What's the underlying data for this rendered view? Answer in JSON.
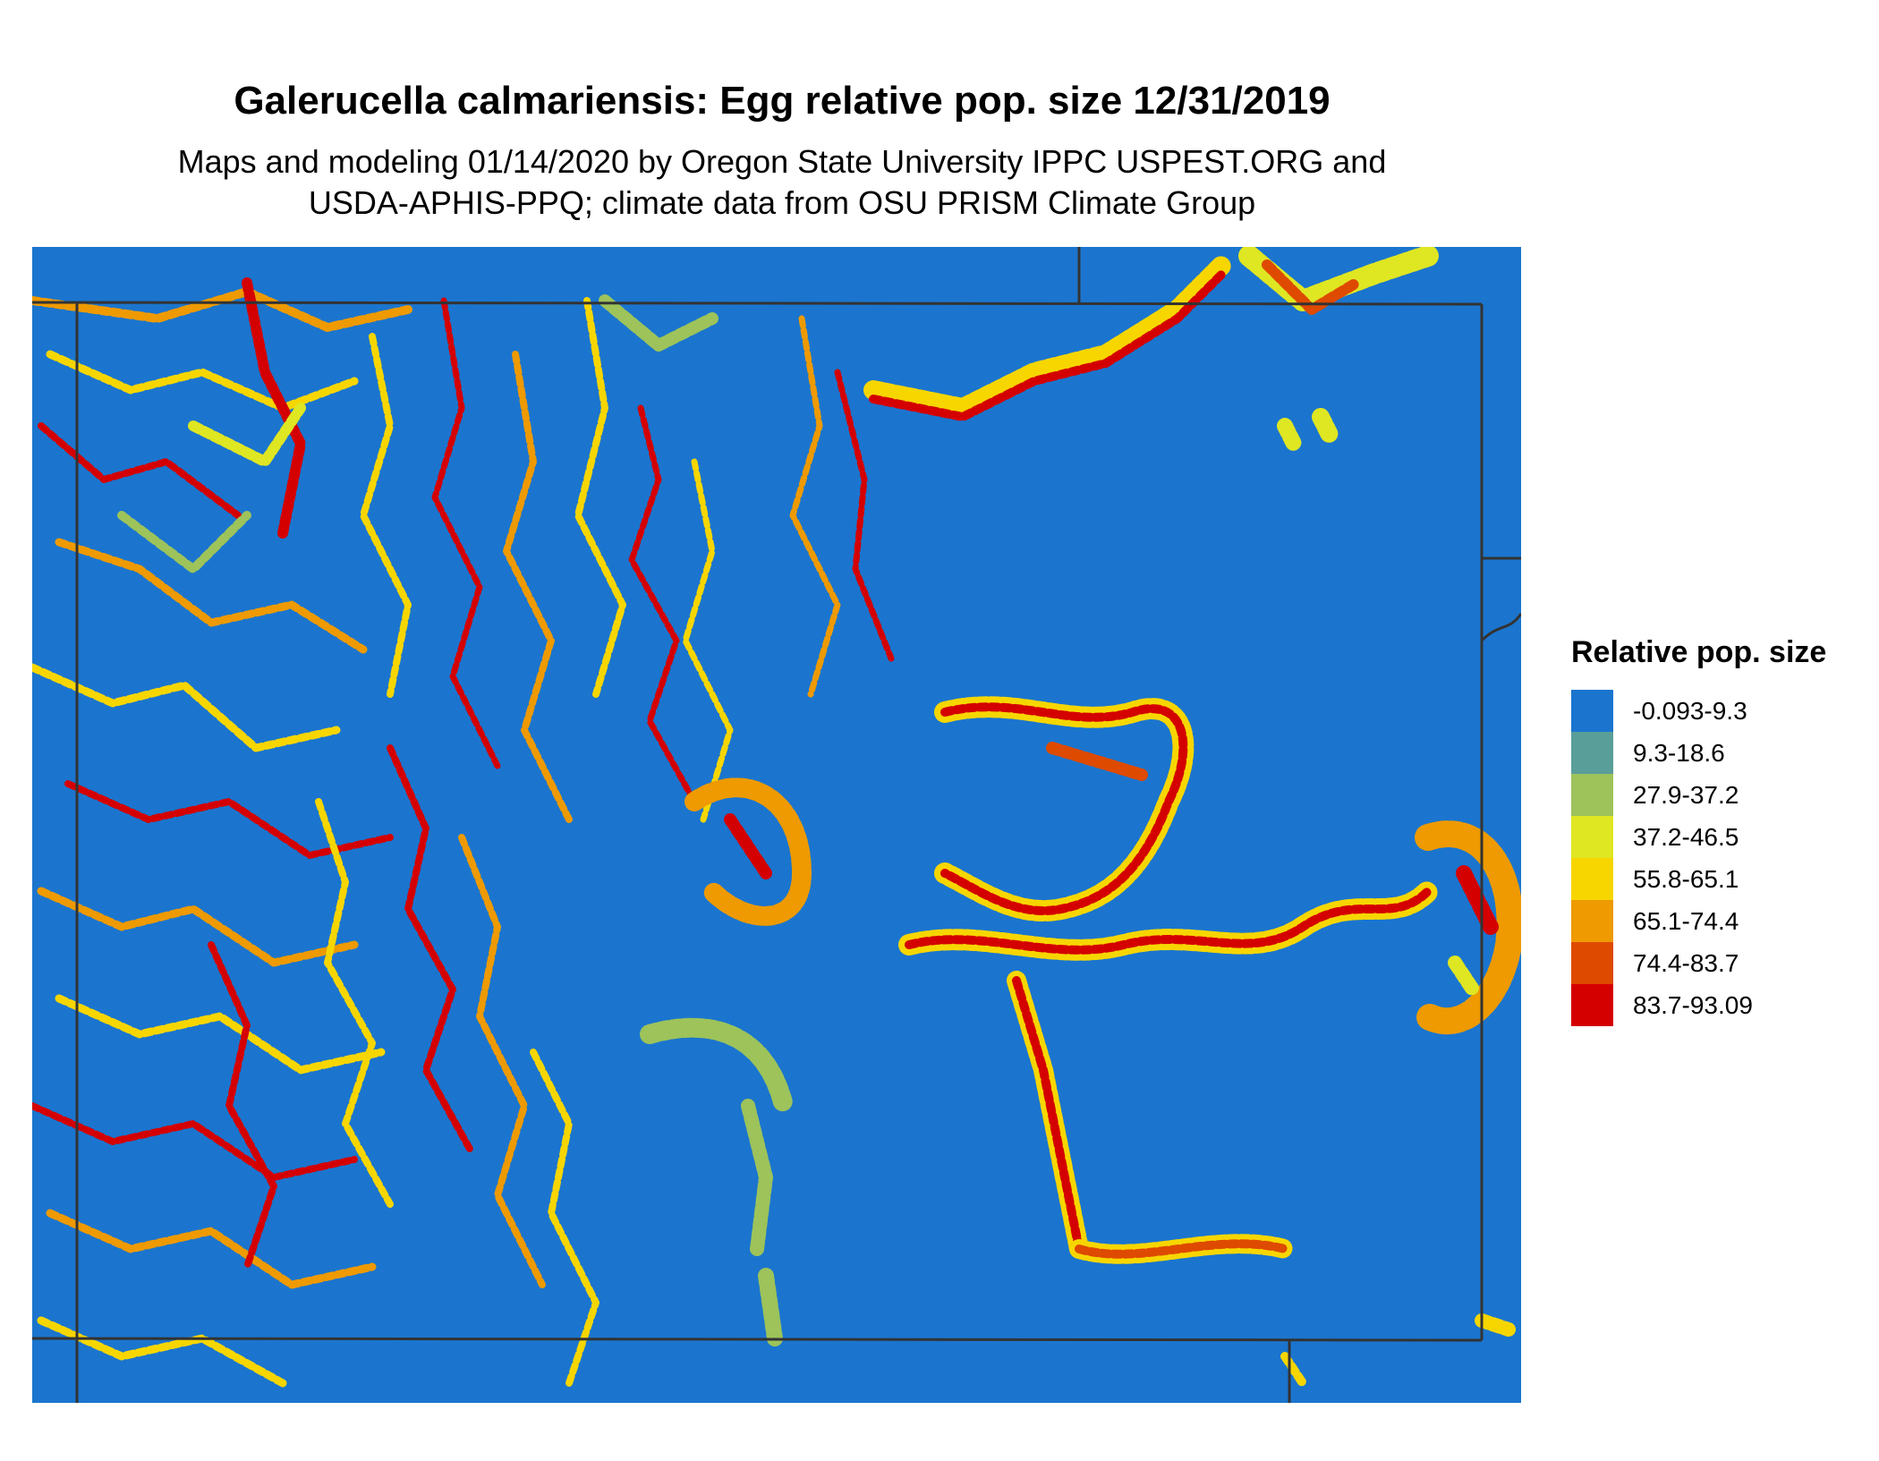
{
  "title": "Galerucella calmariensis: Egg relative pop. size 12/31/2019",
  "subtitle_line1": "Maps and modeling 01/14/2020 by Oregon State University IPPC USPEST.ORG and",
  "subtitle_line2": "USDA-APHIS-PPQ; climate data from OSU PRISM Climate Group",
  "map": {
    "background_color": "#1b75ce",
    "boundary_color": "#333333"
  },
  "legend": {
    "title": "Relative pop. size",
    "items": [
      {
        "label": "-0.093-9.3",
        "color": "#1b75ce"
      },
      {
        "label": "9.3-18.6",
        "color": "#5a9e9a"
      },
      {
        "label": "27.9-37.2",
        "color": "#9dc35a"
      },
      {
        "label": "37.2-46.5",
        "color": "#dfe622"
      },
      {
        "label": "55.8-65.1",
        "color": "#f7d600"
      },
      {
        "label": "65.1-74.4",
        "color": "#ee9a00"
      },
      {
        "label": "74.4-83.7",
        "color": "#de4a00"
      },
      {
        "label": "83.7-93.09",
        "color": "#d40000"
      }
    ]
  }
}
